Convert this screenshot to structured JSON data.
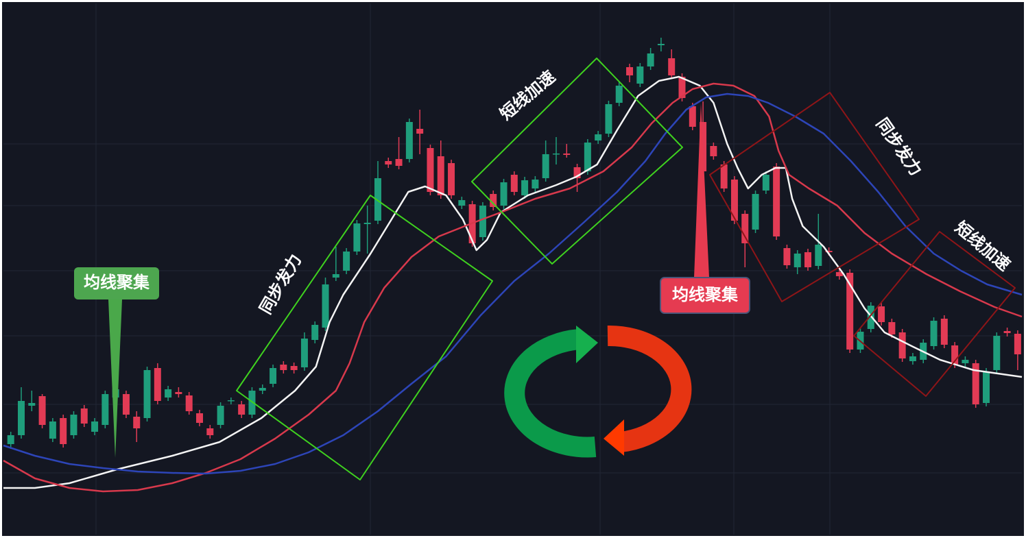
{
  "chart_data": {
    "type": "candlestick",
    "up_color": "#1f9e7c",
    "down_color": "#e23b55",
    "xlim": [
      -0.7,
      96.4
    ],
    "ylim": [
      0,
      775
    ],
    "open": [
      132,
      145,
      188,
      202,
      140,
      170,
      145,
      184,
      150,
      160,
      200,
      205,
      172,
      170,
      243,
      200,
      208,
      203,
      177,
      155,
      160,
      195,
      190,
      175,
      210,
      220,
      248,
      246,
      244,
      284,
      302,
      375,
      385,
      413,
      453,
      458,
      545,
      548,
      548,
      592,
      564,
      552,
      542,
      480,
      482,
      434,
      497,
      480,
      525,
      495,
      505,
      520,
      555,
      556,
      536,
      530,
      575,
      585,
      630,
      682,
      658,
      683,
      714,
      695,
      668,
      625,
      602,
      567,
      540,
      518,
      468,
      445,
      502,
      537,
      418,
      390,
      412,
      392,
      414,
      383,
      382,
      270,
      300,
      333,
      310,
      295,
      253,
      255,
      275,
      315,
      276,
      250,
      250,
      192,
      240,
      297,
      293
    ],
    "high": [
      150,
      215,
      210,
      205,
      170,
      175,
      180,
      189,
      170,
      210,
      217,
      210,
      180,
      245,
      250,
      217,
      215,
      208,
      182,
      160,
      193,
      200,
      195,
      215,
      219,
      248,
      253,
      251,
      295,
      311,
      375,
      420,
      418,
      459,
      480,
      545,
      550,
      580,
      607,
      620,
      569,
      575,
      547,
      493,
      487,
      485,
      502,
      519,
      530,
      522,
      523,
      575,
      580,
      570,
      541,
      577,
      589,
      633,
      660,
      687,
      688,
      710,
      725,
      708,
      673,
      630,
      632,
      572,
      545,
      523,
      473,
      502,
      530,
      542,
      423,
      415,
      417,
      468,
      419,
      388,
      387,
      301,
      339,
      338,
      315,
      300,
      265,
      285,
      317,
      320,
      281,
      260,
      255,
      243,
      295,
      302,
      298
    ],
    "low": [
      125,
      140,
      180,
      155,
      135,
      127,
      140,
      157,
      145,
      155,
      195,
      170,
      135,
      165,
      190,
      195,
      200,
      175,
      158,
      140,
      155,
      190,
      170,
      170,
      205,
      215,
      235,
      235,
      239,
      279,
      297,
      370,
      380,
      408,
      410,
      453,
      535,
      533,
      543,
      555,
      495,
      490,
      490,
      475,
      420,
      429,
      473,
      475,
      495,
      490,
      500,
      515,
      540,
      550,
      500,
      525,
      570,
      580,
      625,
      660,
      653,
      678,
      705,
      665,
      632,
      590,
      490,
      547,
      500,
      453,
      390,
      440,
      497,
      430,
      388,
      380,
      385,
      387,
      407,
      372,
      265,
      265,
      295,
      305,
      287,
      252,
      248,
      250,
      270,
      272,
      243,
      245,
      185,
      187,
      235,
      289,
      240
    ],
    "close": [
      145,
      195,
      192,
      160,
      165,
      132,
      175,
      162,
      165,
      205,
      212,
      175,
      155,
      240,
      195,
      212,
      205,
      180,
      163,
      145,
      188,
      196,
      175,
      210,
      214,
      243,
      240,
      240,
      286,
      306,
      365,
      380,
      413,
      454,
      455,
      520,
      540,
      538,
      602,
      585,
      500,
      495,
      495,
      488,
      425,
      480,
      478,
      514,
      500,
      517,
      518,
      555,
      556,
      554,
      520,
      572,
      584,
      628,
      655,
      670,
      683,
      702,
      716,
      670,
      637,
      595,
      530,
      552,
      505,
      458,
      425,
      497,
      525,
      435,
      393,
      410,
      390,
      423,
      412,
      377,
      270,
      296,
      334,
      310,
      292,
      257,
      260,
      280,
      312,
      277,
      248,
      255,
      190,
      238,
      290,
      294,
      263
    ],
    "lines": [
      {
        "color": "#f4f4f4",
        "x": [
          -0.7,
          2.3,
          5.6,
          10.1,
          15.4,
          19.9,
          23.9,
          27.1,
          29.1,
          30.4,
          31.7,
          34.3,
          36.3,
          37.9,
          39.5,
          41.5,
          43.1,
          44.4,
          45.4,
          46.7,
          49.3,
          52,
          53.9,
          55.9,
          57.8,
          59.8,
          61.8,
          63.7,
          65.7,
          67,
          68.3,
          69.3,
          70.3,
          71.6,
          72.9,
          73.9,
          74.5,
          75.5,
          77.5,
          79.4,
          81.4,
          83.3,
          85.9,
          88.6,
          91.8,
          96.4
        ],
        "values": [
          68,
          68,
          75,
          95,
          115,
          135,
          170,
          210,
          245,
          310,
          350,
          410,
          460,
          500,
          508,
          495,
          460,
          415,
          430,
          470,
          495,
          510,
          522,
          540,
          590,
          640,
          662,
          668,
          655,
          630,
          570,
          535,
          505,
          525,
          535,
          535,
          490,
          450,
          420,
          380,
          330,
          295,
          275,
          255,
          240,
          230
        ]
      },
      {
        "color": "#d8394c",
        "x": [
          -0.7,
          2.3,
          5.6,
          8.8,
          12.1,
          15.4,
          18.6,
          21.9,
          25.2,
          28.4,
          31,
          32.3,
          33.7,
          35.6,
          38.2,
          40.8,
          44.1,
          46.7,
          50,
          53.3,
          56.5,
          59.2,
          61.1,
          63.1,
          65,
          67,
          68.9,
          70.9,
          72.3,
          73.2,
          74.2,
          76.1,
          78.8,
          81.4,
          84,
          87.3,
          90.5,
          93.8,
          96.4
        ],
        "values": [
          108,
          82,
          68,
          63,
          65,
          75,
          90,
          110,
          140,
          175,
          210,
          250,
          310,
          360,
          405,
          435,
          455,
          470,
          490,
          505,
          530,
          565,
          600,
          630,
          650,
          658,
          655,
          640,
          610,
          560,
          525,
          505,
          480,
          440,
          410,
          380,
          355,
          332,
          318
        ]
      },
      {
        "color": "#2d45b8",
        "x": [
          -0.7,
          2.3,
          5.6,
          8.8,
          12.1,
          15.4,
          18.6,
          21.9,
          25.2,
          28.4,
          31.7,
          35,
          38.2,
          41.5,
          44.8,
          48,
          51.3,
          54.6,
          57.8,
          60.5,
          62.4,
          64.4,
          66.3,
          68.3,
          70.3,
          72.2,
          74.8,
          77.5,
          80.1,
          82.7,
          85.3,
          88,
          90.6,
          93.1,
          96.4
        ],
        "values": [
          130,
          115,
          103,
          97,
          92,
          90,
          89,
          93,
          103,
          120,
          145,
          180,
          220,
          260,
          320,
          370,
          410,
          455,
          500,
          545,
          585,
          620,
          638,
          643,
          640,
          630,
          610,
          585,
          545,
          500,
          450,
          410,
          385,
          365,
          350
        ]
      }
    ],
    "annotations": [
      "均线聚集",
      "同步发力",
      "短线加速",
      "均线聚集",
      "同步发力",
      "短线加速"
    ]
  }
}
